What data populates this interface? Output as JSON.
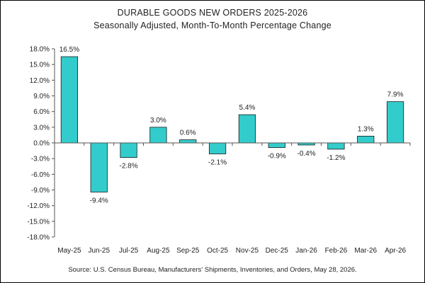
{
  "chart_data": {
    "type": "bar",
    "title": "DURABLE GOODS NEW ORDERS 2025-2026",
    "subtitle": "Seasonally Adjusted,  Month-To-Month Percentage Change",
    "categories": [
      "May-25",
      "Jun-25",
      "Jul-25",
      "Aug-25",
      "Sep-25",
      "Oct-25",
      "Nov-25",
      "Dec-25",
      "Jan-26",
      "Feb-26",
      "Mar-26",
      "Apr-26"
    ],
    "values": [
      16.5,
      -9.4,
      -2.8,
      3.0,
      0.6,
      -2.1,
      5.4,
      -0.9,
      -0.4,
      -1.2,
      1.3,
      7.9
    ],
    "data_labels": [
      "16.5%",
      "-9.4%",
      "-2.8%",
      "3.0%",
      "0.6%",
      "-2.1%",
      "5.4%",
      "-0.9%",
      "-0.4%",
      "-1.2%",
      "1.3%",
      "7.9%"
    ],
    "ylim": [
      -18,
      18
    ],
    "yticks": [
      18,
      15,
      12,
      9,
      6,
      3,
      0,
      -3,
      -6,
      -9,
      -12,
      -15,
      -18
    ],
    "ytick_labels": [
      "18.0%",
      "15.0%",
      "12.0%",
      "9.0%",
      "6.0%",
      "3.0%",
      "0.0%",
      "-3.0%",
      "-6.0%",
      "-9.0%",
      "-12.0%",
      "-15.0%",
      "-18.0%"
    ],
    "xlabel": "",
    "ylabel": "",
    "grid": false,
    "legend": "none",
    "bar_color": "#33CCCC",
    "bar_edge_color": "#1a1a1a",
    "source": "Source: U.S. Census Bureau, Manufacturers' Shipments, Inventories, and Orders, May 28, 2026."
  }
}
